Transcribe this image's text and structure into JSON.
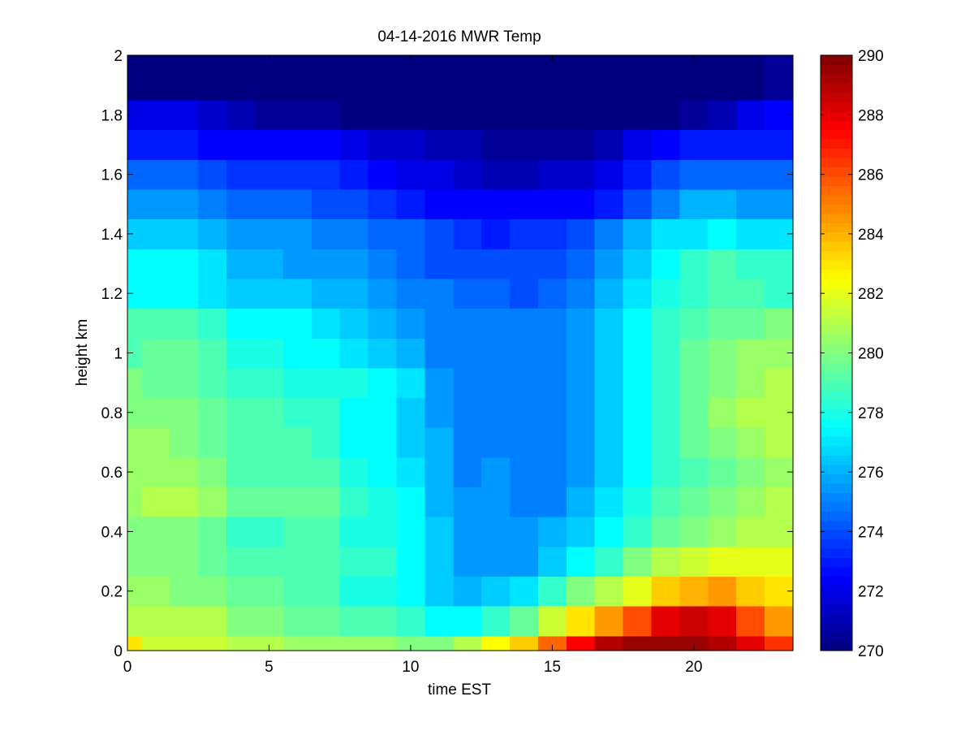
{
  "chart_data": {
    "type": "heatmap",
    "title": "04-14-2016 MWR Temp",
    "xlabel": "time EST",
    "ylabel": "height km",
    "xlim": [
      0,
      23.5
    ],
    "ylim": [
      0,
      2
    ],
    "xticks": [
      0,
      5,
      10,
      15,
      20
    ],
    "xtick_labels": [
      "0",
      "5",
      "10",
      "15",
      "20"
    ],
    "yticks": [
      0,
      0.2,
      0.4,
      0.6,
      0.8,
      1,
      1.2,
      1.4,
      1.6,
      1.8,
      2
    ],
    "ytick_labels": [
      "0",
      "0.2",
      "0.4",
      "0.6",
      "0.8",
      "1",
      "1.2",
      "1.4",
      "1.6",
      "1.8",
      "2"
    ],
    "colorbar": {
      "colormap": "jet",
      "clim": [
        270,
        290
      ],
      "ticks": [
        270,
        272,
        274,
        276,
        278,
        280,
        282,
        284,
        286,
        288,
        290
      ],
      "tick_labels": [
        "270",
        "272",
        "274",
        "276",
        "278",
        "280",
        "282",
        "284",
        "286",
        "288",
        "290"
      ]
    },
    "x": [
      0,
      0.5,
      1.5,
      2.5,
      3.5,
      4.5,
      5.5,
      6.5,
      7.5,
      8.5,
      9.5,
      10.5,
      11.5,
      12.5,
      13.5,
      14.5,
      15.5,
      16.5,
      17.5,
      18.5,
      19.5,
      20.5,
      21.5,
      22.5
    ],
    "x_edges": [
      0,
      0.5,
      1.5,
      2.5,
      3.5,
      4.5,
      5.5,
      6.5,
      7.5,
      8.5,
      9.5,
      10.5,
      11.5,
      12.5,
      13.5,
      14.5,
      15.5,
      16.5,
      17.5,
      18.5,
      19.5,
      20.5,
      21.5,
      22.5,
      23.5
    ],
    "y": [
      0,
      0.05,
      0.15,
      0.25,
      0.35,
      0.45,
      0.55,
      0.65,
      0.75,
      0.85,
      0.95,
      1.05,
      1.15,
      1.25,
      1.35,
      1.45,
      1.55,
      1.65,
      1.75,
      1.85
    ],
    "y_edges": [
      0,
      0.05,
      0.15,
      0.25,
      0.35,
      0.45,
      0.55,
      0.65,
      0.75,
      0.85,
      0.95,
      1.05,
      1.15,
      1.25,
      1.35,
      1.45,
      1.55,
      1.65,
      1.75,
      1.85,
      2.0
    ],
    "values": [
      [
        283.0,
        281.5,
        281.5,
        281.5,
        281.0,
        281.0,
        280.5,
        280.5,
        280.5,
        280.5,
        280.0,
        280.0,
        281.0,
        282.5,
        283.5,
        285.5,
        287.5,
        289.0,
        289.5,
        289.5,
        289.5,
        289.0,
        288.0,
        286.5
      ],
      [
        281.0,
        281.0,
        281.0,
        281.0,
        280.0,
        280.0,
        279.5,
        279.5,
        279.0,
        279.0,
        278.5,
        277.5,
        277.5,
        278.5,
        279.5,
        281.5,
        283.0,
        284.5,
        286.0,
        288.0,
        288.5,
        288.0,
        286.0,
        284.5
      ],
      [
        280.5,
        280.5,
        280.0,
        280.0,
        279.5,
        279.5,
        279.0,
        279.0,
        278.0,
        278.0,
        277.5,
        276.5,
        276.0,
        276.5,
        277.0,
        278.5,
        280.0,
        281.0,
        282.0,
        283.5,
        284.0,
        284.5,
        283.5,
        283.0
      ],
      [
        280.0,
        280.0,
        280.0,
        279.5,
        279.0,
        279.0,
        279.0,
        279.0,
        278.5,
        278.5,
        277.5,
        276.5,
        275.5,
        275.5,
        275.5,
        276.5,
        277.5,
        278.5,
        280.0,
        281.0,
        281.5,
        282.0,
        282.0,
        282.0
      ],
      [
        280.0,
        280.0,
        280.0,
        279.5,
        278.5,
        278.5,
        279.0,
        279.0,
        278.0,
        278.0,
        277.5,
        276.5,
        275.5,
        275.5,
        275.5,
        276.0,
        276.5,
        277.5,
        278.5,
        279.5,
        280.0,
        280.5,
        281.0,
        281.0
      ],
      [
        280.5,
        281.0,
        281.0,
        280.5,
        279.5,
        279.5,
        279.5,
        279.5,
        278.5,
        278.0,
        277.5,
        276.0,
        275.5,
        275.5,
        275.0,
        275.0,
        276.0,
        277.0,
        278.0,
        279.0,
        279.5,
        280.0,
        280.5,
        281.0
      ],
      [
        280.5,
        280.5,
        280.5,
        280.0,
        279.0,
        279.0,
        279.0,
        279.0,
        278.0,
        277.5,
        277.0,
        276.0,
        275.0,
        275.5,
        275.0,
        275.0,
        275.5,
        276.5,
        277.5,
        278.5,
        279.0,
        279.5,
        280.0,
        280.5
      ],
      [
        280.5,
        280.5,
        280.0,
        279.5,
        279.0,
        279.0,
        279.0,
        278.5,
        277.5,
        277.5,
        276.5,
        276.0,
        275.0,
        275.0,
        275.0,
        275.0,
        275.5,
        276.5,
        277.5,
        278.5,
        279.5,
        280.0,
        280.5,
        281.0
      ],
      [
        280.0,
        280.0,
        280.0,
        279.5,
        279.0,
        279.0,
        278.5,
        278.5,
        277.5,
        277.5,
        276.5,
        275.5,
        275.0,
        275.0,
        275.0,
        275.0,
        275.5,
        276.5,
        277.5,
        278.5,
        279.5,
        280.5,
        281.0,
        281.0
      ],
      [
        280.0,
        279.5,
        279.5,
        279.0,
        278.5,
        278.5,
        278.0,
        278.0,
        278.0,
        277.5,
        277.0,
        275.5,
        275.0,
        275.0,
        275.0,
        275.0,
        275.5,
        276.5,
        277.5,
        278.5,
        279.5,
        280.0,
        280.5,
        281.0
      ],
      [
        279.0,
        279.5,
        279.5,
        279.0,
        278.0,
        278.0,
        277.5,
        277.5,
        277.0,
        276.5,
        276.0,
        275.0,
        275.0,
        275.0,
        275.0,
        275.0,
        275.5,
        276.5,
        277.5,
        278.5,
        279.5,
        280.0,
        280.5,
        280.5
      ],
      [
        279.0,
        279.0,
        279.0,
        278.5,
        277.5,
        277.5,
        277.5,
        277.0,
        276.5,
        276.0,
        275.5,
        275.0,
        275.0,
        275.0,
        275.0,
        275.0,
        275.5,
        276.5,
        277.5,
        278.5,
        279.0,
        279.5,
        279.5,
        280.0
      ],
      [
        277.5,
        277.5,
        277.5,
        277.0,
        276.5,
        276.5,
        276.5,
        276.0,
        276.0,
        275.5,
        275.0,
        275.0,
        274.5,
        274.5,
        274.0,
        274.5,
        275.0,
        276.0,
        277.0,
        278.0,
        278.5,
        279.0,
        279.0,
        278.5
      ],
      [
        277.5,
        277.5,
        277.5,
        277.0,
        276.0,
        276.0,
        275.5,
        275.5,
        275.5,
        275.0,
        274.5,
        274.0,
        274.0,
        274.0,
        274.0,
        274.0,
        274.5,
        275.5,
        276.5,
        277.5,
        278.5,
        279.0,
        278.5,
        278.5
      ],
      [
        276.5,
        276.5,
        276.5,
        276.0,
        275.5,
        275.5,
        275.5,
        275.0,
        275.0,
        274.5,
        274.5,
        274.0,
        273.5,
        273.0,
        273.5,
        273.5,
        274.0,
        275.0,
        276.0,
        277.0,
        277.0,
        277.5,
        277.0,
        277.0
      ],
      [
        275.5,
        275.5,
        275.5,
        275.0,
        274.5,
        274.5,
        274.5,
        274.0,
        274.0,
        273.5,
        273.0,
        272.5,
        272.5,
        272.5,
        272.5,
        272.5,
        272.5,
        273.0,
        274.0,
        275.0,
        276.0,
        276.0,
        275.5,
        275.5
      ],
      [
        274.5,
        274.5,
        274.5,
        274.0,
        273.5,
        273.5,
        273.5,
        273.5,
        273.0,
        272.5,
        272.0,
        272.0,
        271.5,
        271.0,
        271.0,
        271.5,
        271.5,
        272.0,
        273.0,
        274.0,
        274.5,
        274.5,
        274.5,
        274.5
      ],
      [
        273.0,
        273.0,
        273.0,
        272.5,
        272.5,
        272.5,
        272.5,
        272.5,
        272.0,
        271.5,
        271.5,
        271.0,
        271.0,
        270.5,
        270.5,
        270.5,
        270.5,
        271.0,
        272.0,
        272.5,
        273.0,
        273.0,
        273.0,
        273.0
      ],
      [
        272.0,
        272.0,
        272.0,
        271.5,
        271.0,
        270.5,
        270.5,
        270.5,
        270.0,
        270.0,
        270.0,
        270.0,
        269.5,
        269.5,
        269.5,
        269.5,
        269.5,
        270.0,
        270.0,
        270.0,
        270.5,
        271.0,
        272.0,
        272.5
      ],
      [
        270.0,
        270.0,
        270.0,
        270.0,
        269.5,
        269.5,
        269.5,
        269.5,
        269.5,
        269.5,
        269.5,
        269.5,
        269.5,
        269.5,
        269.5,
        269.5,
        269.5,
        269.5,
        269.5,
        269.5,
        269.5,
        269.5,
        269.5,
        270.5
      ]
    ]
  }
}
